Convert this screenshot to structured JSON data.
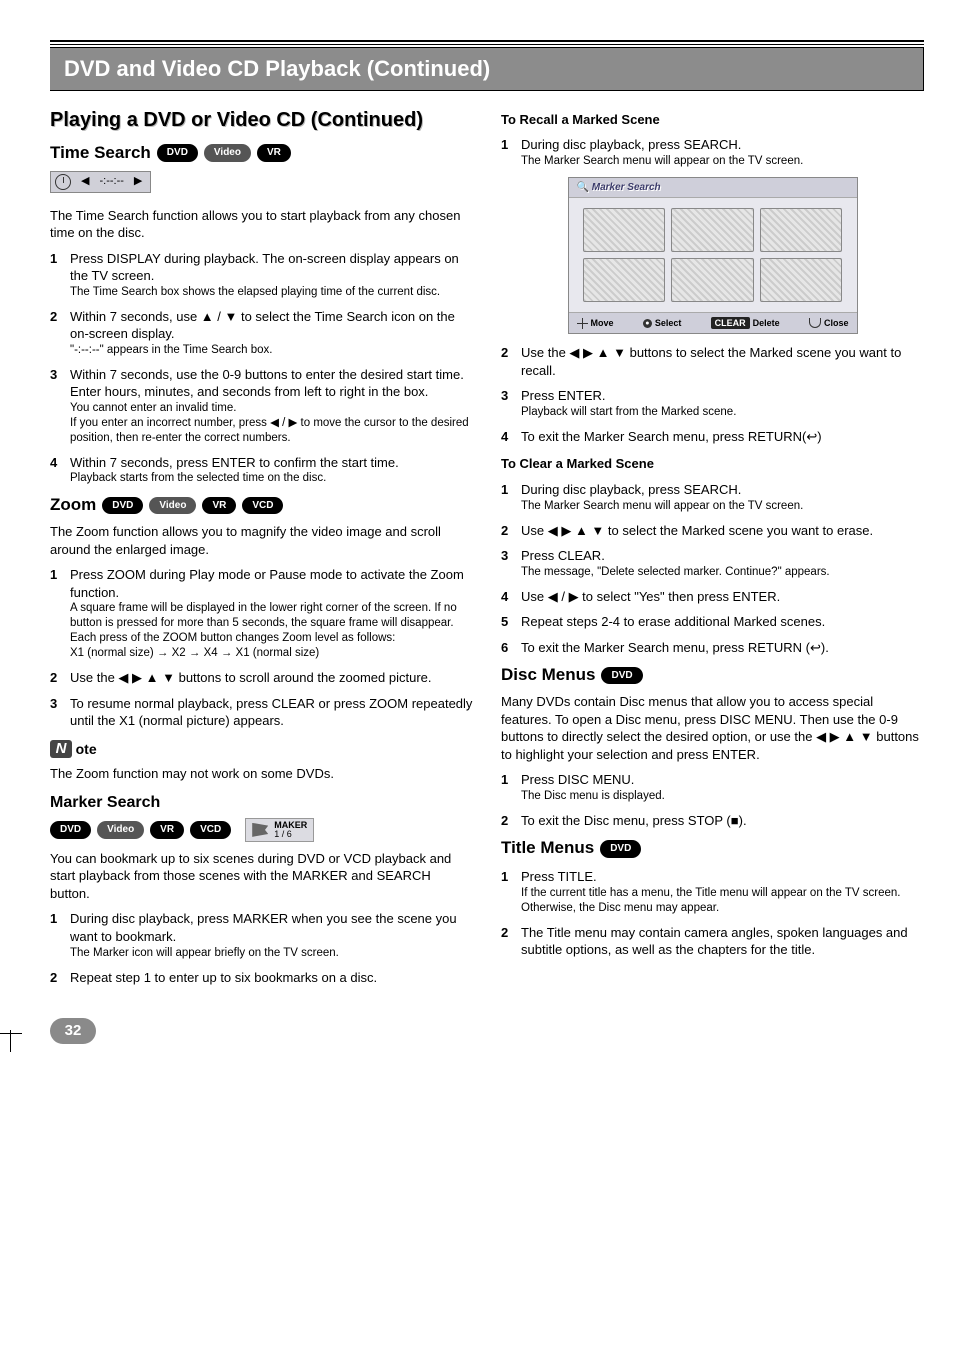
{
  "header": {
    "title": "DVD and Video CD Playback (Continued)"
  },
  "left": {
    "h2": "Playing a DVD or Video CD (Continued)",
    "timeSearch": {
      "heading": "Time Search",
      "pills": [
        "DVD",
        "Video",
        "VR"
      ],
      "timeDisplay": "-:--:--",
      "intro": "The Time Search function allows you to start playback from any chosen time on the disc.",
      "steps": [
        {
          "n": "1",
          "main": "Press DISPLAY during playback. The on-screen display appears on the TV screen.",
          "sub": "The Time Search box shows the elapsed playing time of the current disc."
        },
        {
          "n": "2",
          "main": "Within 7 seconds, use ▲ / ▼ to select the Time Search icon on the on-screen display.",
          "sub": "\"-:--:--\" appears in the Time Search box."
        },
        {
          "n": "3",
          "main": "Within 7 seconds, use the 0-9 buttons to enter the desired start time. Enter hours, minutes, and seconds from left to right in the box.",
          "sub": "You cannot enter an invalid time.",
          "sub2": "If you enter an incorrect number, press ◀ / ▶ to move the cursor to the desired position, then re-enter the correct numbers."
        },
        {
          "n": "4",
          "main": "Within 7 seconds, press ENTER to confirm the start time.",
          "sub": "Playback starts from the selected time on the disc."
        }
      ]
    },
    "zoom": {
      "heading": "Zoom",
      "pills": [
        "DVD",
        "Video",
        "VR",
        "VCD"
      ],
      "intro": "The Zoom function allows you to magnify the video image and scroll around the enlarged image.",
      "steps": [
        {
          "n": "1",
          "main": "Press ZOOM during Play mode or Pause mode to activate the Zoom function.",
          "sub": "A square frame will be displayed in the lower right corner of the screen. If no button is pressed for more than 5 seconds, the square frame will disappear.",
          "sub2": "Each press of the ZOOM button changes Zoom level as follows:",
          "sub3": "X1 (normal size) → X2 → X4 → X1 (normal size)"
        },
        {
          "n": "2",
          "main": "Use the ◀ ▶ ▲ ▼ buttons to scroll around the zoomed picture."
        },
        {
          "n": "3",
          "main": "To resume normal playback, press CLEAR or press ZOOM repeatedly until the X1 (normal picture) appears."
        }
      ],
      "noteLabel": "ote",
      "note": "The Zoom function may not work on some DVDs."
    },
    "markerSearch": {
      "heading": "Marker Search",
      "pills": [
        "DVD",
        "Video",
        "VR",
        "VCD"
      ],
      "chip": {
        "label": "MAKER",
        "count": "1 / 6"
      },
      "intro": "You can bookmark up to six scenes during DVD or VCD playback and start playback from those scenes with the MARKER and SEARCH button.",
      "steps": [
        {
          "n": "1",
          "main": "During disc playback, press MARKER when you see the scene you want to bookmark.",
          "sub": "The Marker icon will appear briefly on the TV screen."
        },
        {
          "n": "2",
          "main": "Repeat step 1 to enter up to six bookmarks on a disc."
        }
      ]
    }
  },
  "right": {
    "recall": {
      "heading": "To Recall a Marked Scene",
      "steps": [
        {
          "n": "1",
          "main": "During disc playback, press SEARCH.",
          "sub": "The Marker Search menu will appear on the TV screen."
        }
      ],
      "panel": {
        "title": "Marker Search",
        "footer": {
          "move": "Move",
          "select": "Select",
          "clear": "CLEAR",
          "delete": "Delete",
          "close": "Close"
        }
      },
      "steps2": [
        {
          "n": "2",
          "main": "Use the ◀ ▶ ▲ ▼ buttons to select the Marked scene you want to recall."
        },
        {
          "n": "3",
          "main": "Press ENTER.",
          "sub": "Playback will start from the Marked scene."
        },
        {
          "n": "4",
          "main": "To exit the Marker Search menu, press RETURN(↩)"
        }
      ]
    },
    "clear": {
      "heading": "To Clear a Marked Scene",
      "steps": [
        {
          "n": "1",
          "main": "During disc playback, press SEARCH.",
          "sub": "The Marker Search menu will appear on the TV screen."
        },
        {
          "n": "2",
          "main": "Use ◀ ▶ ▲ ▼ to select the Marked scene you want to erase."
        },
        {
          "n": "3",
          "main": "Press CLEAR.",
          "sub": "The message, \"Delete selected marker. Continue?\" appears."
        },
        {
          "n": "4",
          "main": "Use ◀ / ▶ to select \"Yes\" then press ENTER."
        },
        {
          "n": "5",
          "main": "Repeat steps 2-4 to erase additional Marked scenes."
        },
        {
          "n": "6",
          "main": "To exit the Marker Search menu, press RETURN (↩)."
        }
      ]
    },
    "discMenus": {
      "heading": "Disc Menus",
      "pills": [
        "DVD"
      ],
      "intro": "Many DVDs contain Disc menus that allow you to access special features. To open a Disc menu, press DISC MENU. Then use the 0-9 buttons to directly select the desired option, or use the ◀ ▶ ▲ ▼ buttons to highlight your selection and press ENTER.",
      "steps": [
        {
          "n": "1",
          "main": "Press DISC MENU.",
          "sub": "The Disc menu is displayed."
        },
        {
          "n": "2",
          "main": "To exit the Disc menu, press STOP (■)."
        }
      ]
    },
    "titleMenus": {
      "heading": "Title Menus",
      "pills": [
        "DVD"
      ],
      "steps": [
        {
          "n": "1",
          "main": "Press TITLE.",
          "sub": "If the current title has a menu, the Title menu will appear on the TV screen. Otherwise, the Disc menu may appear."
        },
        {
          "n": "2",
          "main": "The Title menu may contain camera angles, spoken languages and subtitle options, as well as the chapters for the title."
        }
      ]
    }
  },
  "pageNumber": "32"
}
